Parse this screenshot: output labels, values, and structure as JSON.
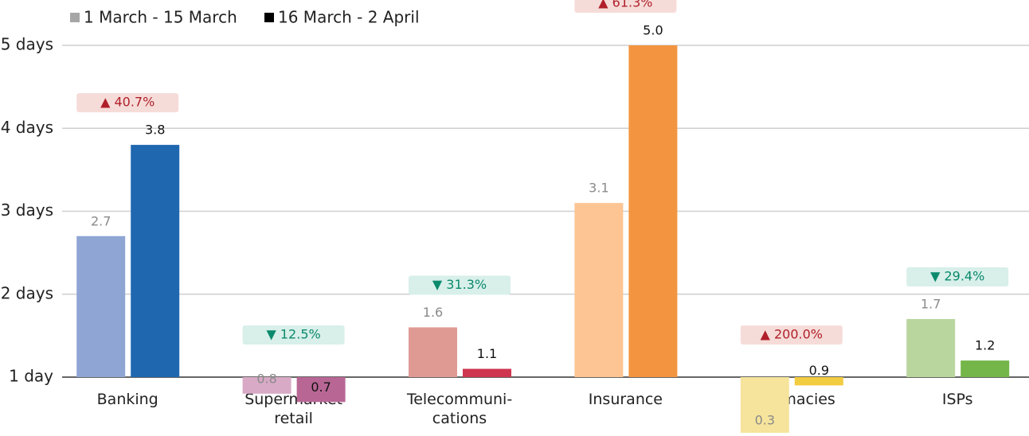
{
  "chart_data": {
    "type": "bar",
    "categories": [
      "Banking",
      "Supermarket\nretail",
      "Telecommuni-\ncations",
      "Insurance",
      "Pharmacies",
      "ISPs"
    ],
    "series": [
      {
        "name": "1 March - 15 March",
        "color": "#a6a6a6",
        "bar_colors": [
          "#8fa5d4",
          "#d8aac6",
          "#e09a94",
          "#fdc594",
          "#f6e49c",
          "#b9d69e"
        ],
        "values": [
          2.7,
          0.8,
          1.6,
          3.1,
          0.3,
          1.7
        ],
        "value_labels": [
          "2.7",
          "0.8",
          "1.6",
          "3.1",
          "0.3",
          "1.7"
        ]
      },
      {
        "name": "16 March - 2 April",
        "color": "#000000",
        "bar_colors": [
          "#1f68b0",
          "#b86795",
          "#cf3650",
          "#f39540",
          "#f2cc41",
          "#74b649"
        ],
        "values": [
          3.8,
          0.7,
          1.1,
          5.0,
          0.9,
          1.2
        ],
        "value_labels": [
          "3.8",
          "0.7",
          "1.1",
          "5.0",
          "0.9",
          "1.2"
        ]
      }
    ],
    "changes": [
      "▲ 40.7%",
      "▼ 12.5%",
      "▼ 31.3%",
      "▲ 61.3%",
      "▲ 200.0%",
      "▼ 29.4%"
    ],
    "ylim": [
      1,
      5
    ],
    "yticks": [
      {
        "value": 1,
        "label": "1 day"
      },
      {
        "value": 2,
        "label": "2 days"
      },
      {
        "value": 3,
        "label": "3 days"
      },
      {
        "value": 4,
        "label": "4 days"
      },
      {
        "value": 5,
        "label": "5 days"
      }
    ],
    "grid": true
  }
}
